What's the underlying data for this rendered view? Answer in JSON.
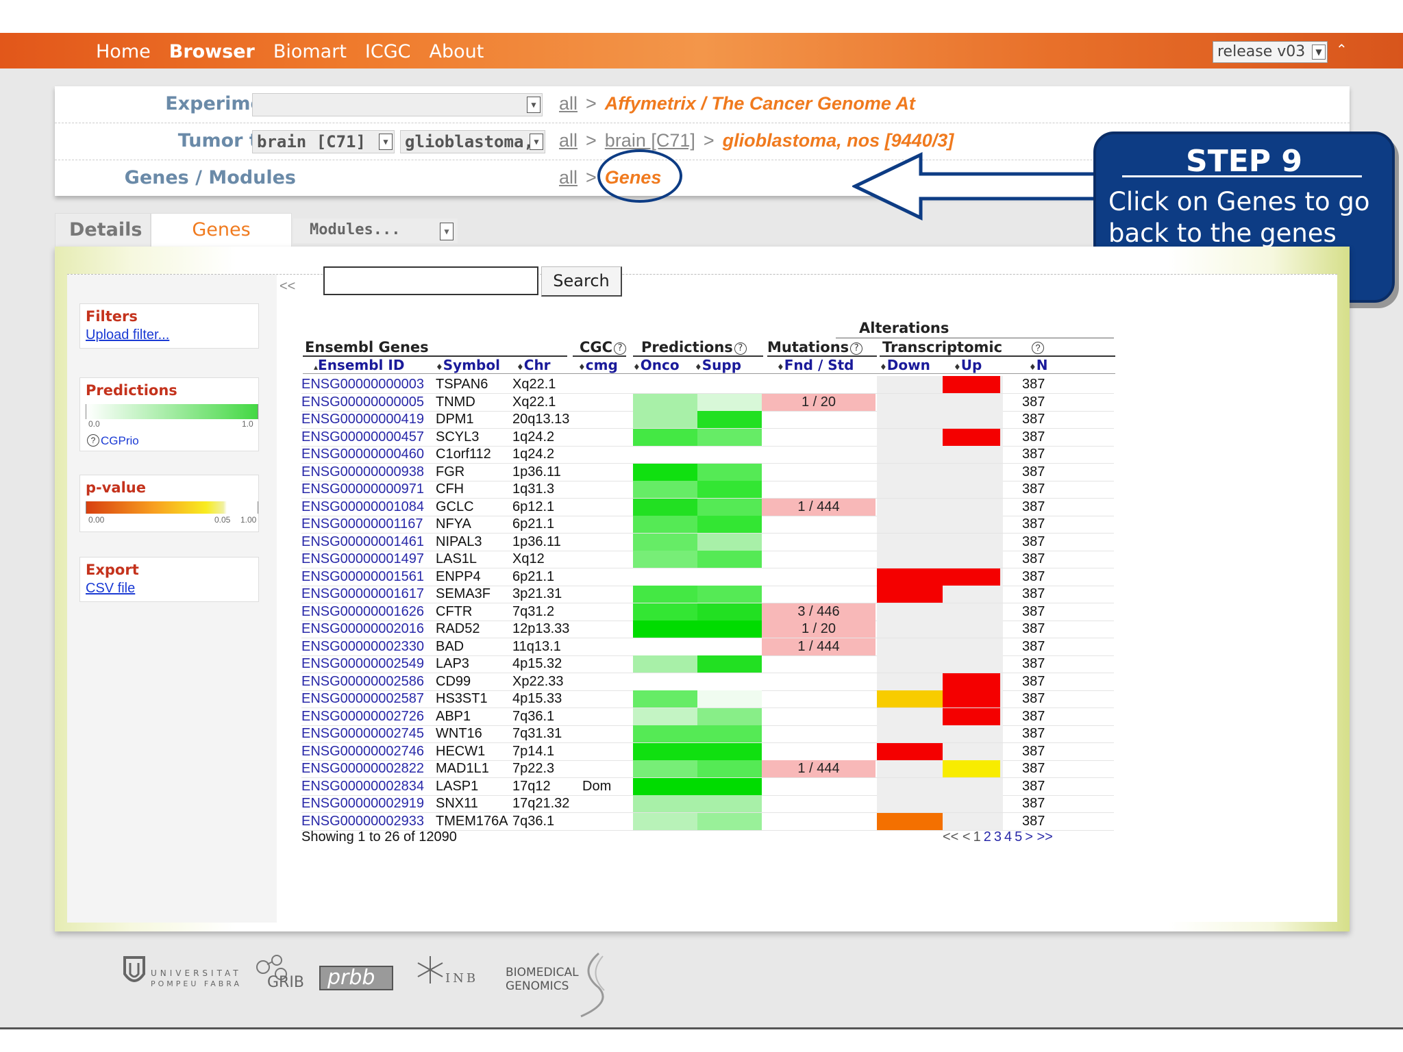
{
  "nav": {
    "items": [
      "Home",
      "Browser",
      "Biomart",
      "ICGC",
      "About"
    ],
    "active": "Browser",
    "release": "release v03"
  },
  "breadcrumbs": {
    "experiments": {
      "label": "Experiments",
      "select_value": "",
      "all": "all",
      "current": "Affymetrix / The Cancer Genome At"
    },
    "tumor": {
      "label": "Tumor type",
      "select1": "brain [C71]",
      "select2": "glioblastoma,",
      "all": "all",
      "mid": "brain [C71]",
      "current": "glioblastoma, nos [9440/3]"
    },
    "genes": {
      "label": "Genes / Modules",
      "all": "all",
      "current": "Genes"
    }
  },
  "tabs": {
    "details": "Details",
    "genes": "Genes",
    "modules": "Modules..."
  },
  "sidebar": {
    "collapse": "<<",
    "filters": {
      "title": "Filters",
      "link": "Upload filter..."
    },
    "predictions": {
      "title": "Predictions",
      "min": "0.0",
      "max": "1.0",
      "link": "CGPrio"
    },
    "pvalue": {
      "title": "p-value",
      "t0": "0.00",
      "t1": "0.05",
      "t2": "1.00"
    },
    "export": {
      "title": "Export",
      "link": "CSV file"
    }
  },
  "search": {
    "button": "Search",
    "value": ""
  },
  "table": {
    "group_headers": {
      "alterations": "Alterations",
      "ensembl": "Ensembl Genes",
      "cgc": "CGC",
      "predictions": "Predictions",
      "mutations": "Mutations",
      "transcriptomic": "Transcriptomic"
    },
    "columns": [
      "Ensembl ID",
      "Symbol",
      "Chr",
      "cmg",
      "Onco",
      "Supp",
      "Fnd / Std",
      "Down",
      "Up",
      "N"
    ],
    "sort_marker": "♦",
    "sort_active": "▴",
    "rows": [
      {
        "id": "ENSG00000000003",
        "sym": "TSPAN6",
        "chr": "Xq22.1",
        "cmg": "",
        "onco": null,
        "supp": null,
        "mut": "",
        "down": null,
        "up": "#f40000",
        "n": "387"
      },
      {
        "id": "ENSG00000000005",
        "sym": "TNMD",
        "chr": "Xq22.1",
        "cmg": "",
        "onco": "#a8f0a8",
        "supp": "#d8f8d8",
        "mut": "1 / 20",
        "down": null,
        "up": null,
        "n": "387"
      },
      {
        "id": "ENSG00000000419",
        "sym": "DPM1",
        "chr": "20q13.13",
        "cmg": "",
        "onco": "#a8f0a8",
        "supp": "#22e022",
        "mut": "",
        "down": null,
        "up": null,
        "n": "387"
      },
      {
        "id": "ENSG00000000457",
        "sym": "SCYL3",
        "chr": "1q24.2",
        "cmg": "",
        "onco": "#44e844",
        "supp": "#66ec66",
        "mut": "",
        "down": null,
        "up": "#f40000",
        "n": "387"
      },
      {
        "id": "ENSG00000000460",
        "sym": "C1orf112",
        "chr": "1q24.2",
        "cmg": "",
        "onco": null,
        "supp": null,
        "mut": "",
        "down": null,
        "up": null,
        "n": "387"
      },
      {
        "id": "ENSG00000000938",
        "sym": "FGR",
        "chr": "1p36.11",
        "cmg": "",
        "onco": "#10e010",
        "supp": "#55ea55",
        "mut": "",
        "down": null,
        "up": null,
        "n": "387"
      },
      {
        "id": "ENSG00000000971",
        "sym": "CFH",
        "chr": "1q31.3",
        "cmg": "",
        "onco": "#66ec66",
        "supp": "#33e633",
        "mut": "",
        "down": null,
        "up": null,
        "n": "387"
      },
      {
        "id": "ENSG00000001084",
        "sym": "GCLC",
        "chr": "6p12.1",
        "cmg": "",
        "onco": "#22e022",
        "supp": "#55ea55",
        "mut": "1 / 444",
        "down": null,
        "up": null,
        "n": "387"
      },
      {
        "id": "ENSG00000001167",
        "sym": "NFYA",
        "chr": "6p21.1",
        "cmg": "",
        "onco": "#55ea55",
        "supp": "#33e633",
        "mut": "",
        "down": null,
        "up": null,
        "n": "387"
      },
      {
        "id": "ENSG00000001461",
        "sym": "NIPAL3",
        "chr": "1p36.11",
        "cmg": "",
        "onco": "#66ec66",
        "supp": "#a8f0a8",
        "mut": "",
        "down": null,
        "up": null,
        "n": "387"
      },
      {
        "id": "ENSG00000001497",
        "sym": "LAS1L",
        "chr": "Xq12",
        "cmg": "",
        "onco": "#77ee77",
        "supp": "#55ea55",
        "mut": "",
        "down": null,
        "up": null,
        "n": "387"
      },
      {
        "id": "ENSG00000001561",
        "sym": "ENPP4",
        "chr": "6p21.1",
        "cmg": "",
        "onco": null,
        "supp": null,
        "mut": "",
        "down": "#f40000",
        "up": "#f40000",
        "n": "387"
      },
      {
        "id": "ENSG00000001617",
        "sym": "SEMA3F",
        "chr": "3p21.31",
        "cmg": "",
        "onco": "#44e844",
        "supp": "#55ea55",
        "mut": "",
        "down": "#f40000",
        "up": null,
        "n": "387"
      },
      {
        "id": "ENSG00000001626",
        "sym": "CFTR",
        "chr": "7q31.2",
        "cmg": "",
        "onco": "#33e633",
        "supp": "#22e022",
        "mut": "3 / 446",
        "down": null,
        "up": null,
        "n": "387"
      },
      {
        "id": "ENSG00000002016",
        "sym": "RAD52",
        "chr": "12p13.33",
        "cmg": "",
        "onco": "#00dc00",
        "supp": "#00dc00",
        "mut": "1 / 20",
        "down": null,
        "up": null,
        "n": "387"
      },
      {
        "id": "ENSG00000002330",
        "sym": "BAD",
        "chr": "11q13.1",
        "cmg": "",
        "onco": null,
        "supp": null,
        "mut": "1 / 444",
        "down": null,
        "up": null,
        "n": "387"
      },
      {
        "id": "ENSG00000002549",
        "sym": "LAP3",
        "chr": "4p15.32",
        "cmg": "",
        "onco": "#a8f0a8",
        "supp": "#22e022",
        "mut": "",
        "down": null,
        "up": null,
        "n": "387"
      },
      {
        "id": "ENSG00000002586",
        "sym": "CD99",
        "chr": "Xp22.33",
        "cmg": "",
        "onco": null,
        "supp": null,
        "mut": "",
        "down": null,
        "up": "#f40000",
        "n": "387"
      },
      {
        "id": "ENSG00000002587",
        "sym": "HS3ST1",
        "chr": "4p15.33",
        "cmg": "",
        "onco": "#66ec66",
        "supp": "#f0fcf0",
        "mut": "",
        "down": "#f8cc00",
        "up": "#f40000",
        "n": "387"
      },
      {
        "id": "ENSG00000002726",
        "sym": "ABP1",
        "chr": "7q36.1",
        "cmg": "",
        "onco": "#c4f4c4",
        "supp": "#88ee88",
        "mut": "",
        "down": null,
        "up": "#f40000",
        "n": "387"
      },
      {
        "id": "ENSG00000002745",
        "sym": "WNT16",
        "chr": "7q31.31",
        "cmg": "",
        "onco": "#55ea55",
        "supp": "#55ea55",
        "mut": "",
        "down": null,
        "up": null,
        "n": "387"
      },
      {
        "id": "ENSG00000002746",
        "sym": "HECW1",
        "chr": "7p14.1",
        "cmg": "",
        "onco": "#10e010",
        "supp": "#10e010",
        "mut": "",
        "down": "#f40000",
        "up": null,
        "n": "387"
      },
      {
        "id": "ENSG00000002822",
        "sym": "MAD1L1",
        "chr": "7p22.3",
        "cmg": "",
        "onco": "#77ee77",
        "supp": "#55ea55",
        "mut": "1 / 444",
        "down": null,
        "up": "#f8ec00",
        "n": "387"
      },
      {
        "id": "ENSG00000002834",
        "sym": "LASP1",
        "chr": "17q12",
        "cmg": "Dom",
        "onco": "#00dc00",
        "supp": "#00dc00",
        "mut": "",
        "down": null,
        "up": null,
        "n": "387"
      },
      {
        "id": "ENSG00000002919",
        "sym": "SNX11",
        "chr": "17q21.32",
        "cmg": "",
        "onco": "#a8f0a8",
        "supp": "#a8f0a8",
        "mut": "",
        "down": null,
        "up": null,
        "n": "387"
      },
      {
        "id": "ENSG00000002933",
        "sym": "TMEM176A",
        "chr": "7q36.1",
        "cmg": "",
        "onco": "#b8f2b8",
        "supp": "#99f099",
        "mut": "",
        "down": "#f47000",
        "up": null,
        "n": "387"
      }
    ],
    "showing": "Showing 1 to 26 of 12090",
    "pager": {
      "prev": "<<  <",
      "pages": [
        "1",
        "2",
        "3",
        "4",
        "5"
      ],
      "next": ">  >>"
    }
  },
  "callout": {
    "title": "STEP 9",
    "text": "Click on Genes to go back to the genes table page",
    "fill": "#0d3c84"
  },
  "footer": {
    "upf1": "UNIVERSITAT",
    "upf2": "POMPEU FABRA",
    "grib": "GRIB",
    "prbb": "prbb",
    "inb": "INB",
    "bg1": "BIOMEDICAL",
    "bg2": "GENOMICS"
  },
  "colors": {
    "accent": "#f07a1e",
    "link": "#2828a8",
    "mutation_cell": "#f8b8b8",
    "transcript_bg": "#eeeeee"
  }
}
